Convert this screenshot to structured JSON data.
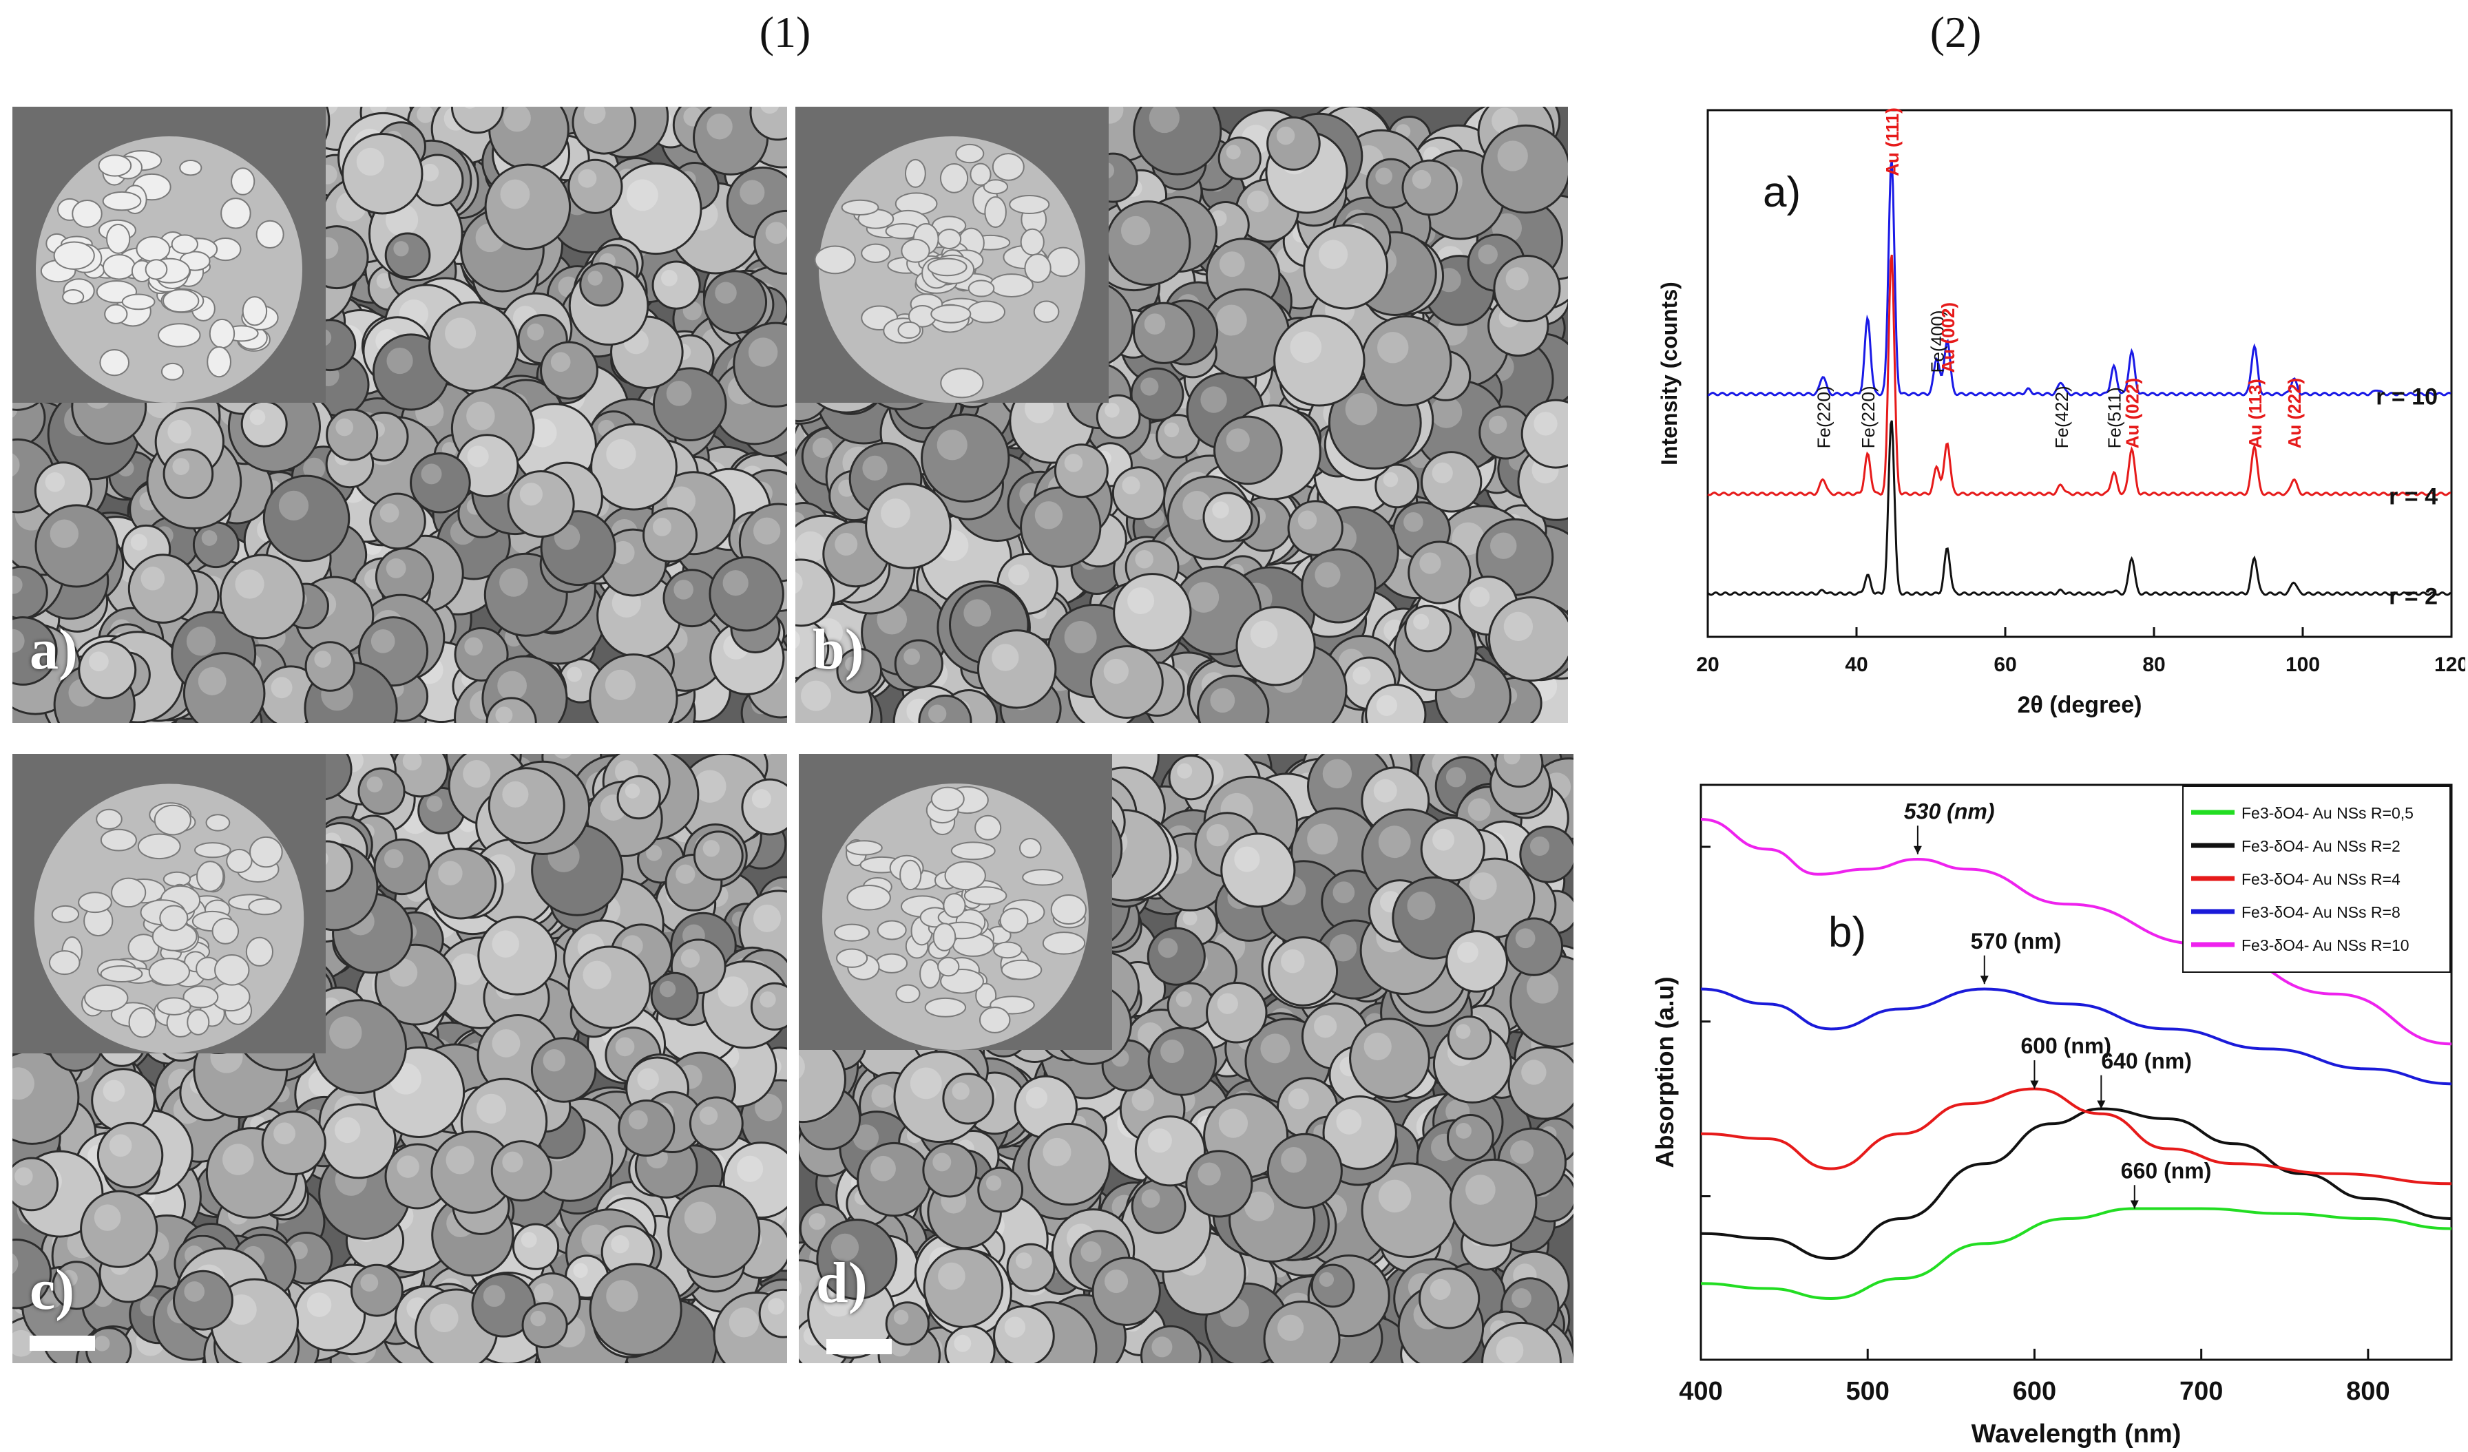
{
  "titles": {
    "left": "(1)",
    "right": "(2)"
  },
  "sem_panels": [
    {
      "label": "a)"
    },
    {
      "label": "b)"
    },
    {
      "label": "c)"
    },
    {
      "label": "d)"
    }
  ],
  "chart_data": [
    {
      "type": "line",
      "panel_label": "a)",
      "title": "",
      "xlabel": "2θ (degree)",
      "ylabel": "Intensity (counts)",
      "xlim": [
        20,
        120
      ],
      "xticks": [
        20,
        40,
        60,
        80,
        100,
        120
      ],
      "series": [
        {
          "name": "r = 10",
          "color": "#1a1ae6",
          "baseline": 0.78,
          "peaks": [
            [
              35.5,
              0.06
            ],
            [
              41.5,
              0.25
            ],
            [
              44.7,
              0.78
            ],
            [
              50.8,
              0.12
            ],
            [
              52.2,
              0.18
            ],
            [
              63.1,
              0.015
            ],
            [
              67.5,
              0.04
            ],
            [
              74.6,
              0.09
            ],
            [
              77,
              0.14
            ],
            [
              93.5,
              0.16
            ],
            [
              98.8,
              0.05
            ],
            [
              110,
              0.015
            ]
          ]
        },
        {
          "name": "r = 4",
          "color": "#e61a1a",
          "baseline": 0.45,
          "peaks": [
            [
              35.5,
              0.05
            ],
            [
              41.5,
              0.13
            ],
            [
              44.7,
              0.8
            ],
            [
              50.8,
              0.09
            ],
            [
              52.2,
              0.17
            ],
            [
              67.5,
              0.03
            ],
            [
              74.6,
              0.07
            ],
            [
              77,
              0.15
            ],
            [
              93.5,
              0.16
            ],
            [
              98.8,
              0.05
            ]
          ]
        },
        {
          "name": "r = 2",
          "color": "#111111",
          "baseline": 0.12,
          "peaks": [
            [
              35.5,
              0.01
            ],
            [
              41.5,
              0.06
            ],
            [
              44.7,
              0.58
            ],
            [
              52.2,
              0.15
            ],
            [
              67.5,
              0.01
            ],
            [
              74.6,
              0.01
            ],
            [
              77,
              0.12
            ],
            [
              93.5,
              0.12
            ],
            [
              98.8,
              0.04
            ]
          ]
        }
      ],
      "annotations": [
        {
          "text": "Au (111)",
          "x": 44.7,
          "color": "#e61a1a"
        },
        {
          "text": "Fe(220)",
          "x": 35.5,
          "color": "#111111"
        },
        {
          "text": "Fe(220)",
          "x": 41.5,
          "color": "#111111"
        },
        {
          "text": "Fe(400)",
          "x": 50.8,
          "color": "#111111"
        },
        {
          "text": "Au (002)",
          "x": 52.2,
          "color": "#e61a1a"
        },
        {
          "text": "Fe(422)",
          "x": 67.5,
          "color": "#111111"
        },
        {
          "text": "Fe(511)",
          "x": 74.6,
          "color": "#111111"
        },
        {
          "text": "Au (022)",
          "x": 77,
          "color": "#e61a1a"
        },
        {
          "text": "Au (113)",
          "x": 93.5,
          "color": "#e61a1a"
        },
        {
          "text": "Au (222)",
          "x": 98.8,
          "color": "#e61a1a"
        }
      ]
    },
    {
      "type": "line",
      "panel_label": "b)",
      "title": "",
      "xlabel": "Wavelength (nm)",
      "ylabel": "Absorption (a.u)",
      "xlim": [
        400,
        850
      ],
      "xticks": [
        400,
        500,
        600,
        700,
        800
      ],
      "legend_position": "top-right",
      "series": [
        {
          "name": "Fe3-δO4- Au NSs R=0,5",
          "color": "#22dd22",
          "points": [
            [
              400,
              0.07
            ],
            [
              440,
              0.06
            ],
            [
              478,
              0.04
            ],
            [
              520,
              0.08
            ],
            [
              570,
              0.15
            ],
            [
              620,
              0.2
            ],
            [
              660,
              0.22
            ],
            [
              700,
              0.22
            ],
            [
              750,
              0.21
            ],
            [
              800,
              0.2
            ],
            [
              850,
              0.18
            ]
          ]
        },
        {
          "name": "Fe3-δO4- Au NSs R=2",
          "color": "#111111",
          "points": [
            [
              400,
              0.17
            ],
            [
              440,
              0.16
            ],
            [
              478,
              0.12
            ],
            [
              520,
              0.2
            ],
            [
              570,
              0.31
            ],
            [
              610,
              0.39
            ],
            [
              640,
              0.42
            ],
            [
              680,
              0.4
            ],
            [
              720,
              0.35
            ],
            [
              760,
              0.29
            ],
            [
              800,
              0.24
            ],
            [
              850,
              0.2
            ]
          ]
        },
        {
          "name": "Fe3-δO4- Au NSs R=4",
          "color": "#e61a1a",
          "points": [
            [
              400,
              0.37
            ],
            [
              440,
              0.36
            ],
            [
              478,
              0.3
            ],
            [
              520,
              0.37
            ],
            [
              560,
              0.43
            ],
            [
              600,
              0.46
            ],
            [
              640,
              0.41
            ],
            [
              680,
              0.34
            ],
            [
              720,
              0.31
            ],
            [
              780,
              0.29
            ],
            [
              850,
              0.27
            ]
          ]
        },
        {
          "name": "Fe3-δO4- Au NSs R=8",
          "color": "#1a1ad9",
          "points": [
            [
              400,
              0.66
            ],
            [
              440,
              0.63
            ],
            [
              478,
              0.58
            ],
            [
              520,
              0.62
            ],
            [
              570,
              0.66
            ],
            [
              620,
              0.63
            ],
            [
              680,
              0.58
            ],
            [
              740,
              0.54
            ],
            [
              800,
              0.5
            ],
            [
              850,
              0.47
            ]
          ]
        },
        {
          "name": "Fe3-δO4- Au NSs R=10",
          "color": "#ee22ee",
          "points": [
            [
              400,
              1.0
            ],
            [
              440,
              0.94
            ],
            [
              470,
              0.89
            ],
            [
              500,
              0.9
            ],
            [
              530,
              0.92
            ],
            [
              560,
              0.9
            ],
            [
              620,
              0.83
            ],
            [
              700,
              0.75
            ],
            [
              780,
              0.65
            ],
            [
              850,
              0.55
            ]
          ]
        }
      ],
      "annotations": [
        {
          "text": "530 (nm)",
          "x": 530,
          "italic": true
        },
        {
          "text": "570 (nm)",
          "x": 570
        },
        {
          "text": "600 (nm)",
          "x": 600
        },
        {
          "text": "640 (nm)",
          "x": 640
        },
        {
          "text": "660 (nm)",
          "x": 660
        }
      ]
    }
  ]
}
